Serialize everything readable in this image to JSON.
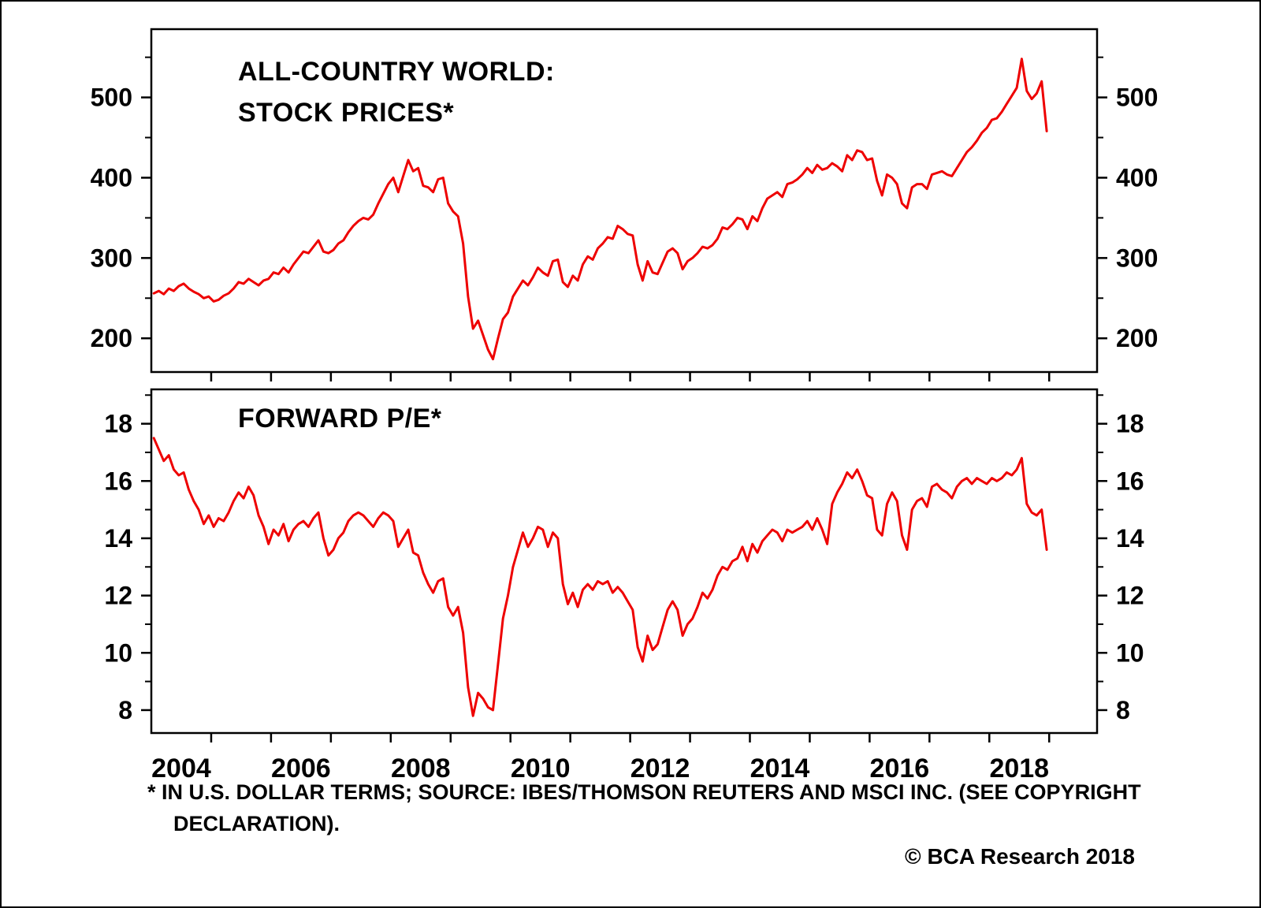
{
  "page": {
    "background": "#ffffff",
    "border_color": "#000000",
    "text_color": "#000000"
  },
  "footnote": {
    "line1": "* IN U.S. DOLLAR TERMS; SOURCE: IBES/THOMSON REUTERS AND MSCI INC. (SEE COPYRIGHT",
    "line2": "DECLARATION)."
  },
  "copyright": "© BCA Research 2018",
  "chart_data": [
    {
      "type": "line",
      "title": "ALL-COUNTRY WORLD: STOCK PRICES*",
      "title_line1": "ALL-COUNTRY WORLD:",
      "title_line2": "STOCK PRICES*",
      "grid": false,
      "legend": "none",
      "xlim": [
        2003.5,
        2019.3
      ],
      "ylim": [
        158,
        585
      ],
      "yticks_major": [
        200,
        300,
        400,
        500
      ],
      "ytick_labels": [
        "200",
        "300",
        "400",
        "500"
      ],
      "yticks_minor": [
        250,
        350,
        450,
        550
      ],
      "xticks": [
        2004.5,
        2005.5,
        2006.5,
        2007.5,
        2008.5,
        2009.5,
        2010.5,
        2011.5,
        2012.5,
        2013.5,
        2014.5,
        2015.5,
        2016.5,
        2017.5,
        2018.5
      ],
      "xtick_label_positions": [
        2004,
        2006,
        2008,
        2010,
        2012,
        2014,
        2016,
        2018
      ],
      "xtick_labels": [
        "2004",
        "2006",
        "2008",
        "2010",
        "2012",
        "2014",
        "2016",
        "2018"
      ],
      "show_xtick_labels": false,
      "series": [
        {
          "color": "#ee0000",
          "x_start": 2003.5417,
          "x_step_years": 0.0833333,
          "values": [
            256,
            259,
            255,
            262,
            259,
            265,
            268,
            262,
            258,
            255,
            250,
            252,
            246,
            248,
            253,
            256,
            262,
            270,
            268,
            274,
            270,
            266,
            272,
            274,
            282,
            280,
            288,
            282,
            292,
            300,
            308,
            306,
            314,
            322,
            308,
            306,
            310,
            318,
            322,
            332,
            340,
            346,
            350,
            348,
            354,
            368,
            380,
            392,
            400,
            382,
            402,
            422,
            408,
            412,
            390,
            388,
            382,
            398,
            400,
            368,
            358,
            352,
            318,
            252,
            212,
            222,
            204,
            186,
            174,
            200,
            224,
            232,
            252,
            262,
            272,
            266,
            276,
            288,
            282,
            278,
            296,
            298,
            270,
            264,
            278,
            272,
            292,
            302,
            298,
            312,
            318,
            326,
            324,
            340,
            336,
            330,
            328,
            292,
            272,
            296,
            282,
            280,
            294,
            308,
            312,
            306,
            286,
            296,
            300,
            306,
            314,
            312,
            316,
            324,
            338,
            336,
            342,
            350,
            348,
            336,
            352,
            346,
            362,
            374,
            378,
            382,
            376,
            392,
            394,
            398,
            404,
            412,
            406,
            416,
            410,
            412,
            418,
            414,
            408,
            428,
            422,
            434,
            432,
            422,
            424,
            396,
            378,
            404,
            400,
            392,
            368,
            362,
            388,
            392,
            392,
            386,
            404,
            406,
            408,
            404,
            402,
            412,
            422,
            432,
            438,
            446,
            456,
            462,
            472,
            474,
            482,
            492,
            502,
            512,
            548,
            508,
            498,
            505,
            520,
            458
          ]
        }
      ]
    },
    {
      "type": "line",
      "title": "FORWARD P/E*",
      "title_line1": "FORWARD P/E*",
      "title_line2": "",
      "grid": false,
      "legend": "none",
      "xlim": [
        2003.5,
        2019.3
      ],
      "ylim": [
        7.2,
        19.2
      ],
      "yticks_major": [
        8,
        10,
        12,
        14,
        16,
        18
      ],
      "ytick_labels": [
        "8",
        "10",
        "12",
        "14",
        "16",
        "18"
      ],
      "yticks_minor": [
        9,
        11,
        13,
        15,
        17,
        19
      ],
      "xticks": [
        2004.5,
        2005.5,
        2006.5,
        2007.5,
        2008.5,
        2009.5,
        2010.5,
        2011.5,
        2012.5,
        2013.5,
        2014.5,
        2015.5,
        2016.5,
        2017.5,
        2018.5
      ],
      "xtick_label_positions": [
        2004,
        2006,
        2008,
        2010,
        2012,
        2014,
        2016,
        2018
      ],
      "xtick_labels": [
        "2004",
        "2006",
        "2008",
        "2010",
        "2012",
        "2014",
        "2016",
        "2018"
      ],
      "show_xtick_labels": true,
      "series": [
        {
          "color": "#ee0000",
          "x_start": 2003.5417,
          "x_step_years": 0.0833333,
          "values": [
            17.5,
            17.1,
            16.7,
            16.9,
            16.4,
            16.2,
            16.3,
            15.7,
            15.3,
            15.0,
            14.5,
            14.8,
            14.4,
            14.7,
            14.6,
            14.9,
            15.3,
            15.6,
            15.4,
            15.8,
            15.5,
            14.8,
            14.4,
            13.8,
            14.3,
            14.1,
            14.5,
            13.9,
            14.3,
            14.5,
            14.6,
            14.4,
            14.7,
            14.9,
            14.0,
            13.4,
            13.6,
            14.0,
            14.2,
            14.6,
            14.8,
            14.9,
            14.8,
            14.6,
            14.4,
            14.7,
            14.9,
            14.8,
            14.6,
            13.7,
            14.0,
            14.3,
            13.5,
            13.4,
            12.8,
            12.4,
            12.1,
            12.5,
            12.6,
            11.6,
            11.3,
            11.6,
            10.7,
            8.8,
            7.8,
            8.6,
            8.4,
            8.1,
            8.0,
            9.6,
            11.2,
            12.0,
            13.0,
            13.6,
            14.2,
            13.7,
            14.0,
            14.4,
            14.3,
            13.7,
            14.2,
            14.0,
            12.4,
            11.7,
            12.1,
            11.6,
            12.2,
            12.4,
            12.2,
            12.5,
            12.4,
            12.5,
            12.1,
            12.3,
            12.1,
            11.8,
            11.5,
            10.2,
            9.7,
            10.6,
            10.1,
            10.3,
            10.9,
            11.5,
            11.8,
            11.5,
            10.6,
            11.0,
            11.2,
            11.6,
            12.1,
            11.9,
            12.2,
            12.7,
            13.0,
            12.9,
            13.2,
            13.3,
            13.7,
            13.2,
            13.8,
            13.5,
            13.9,
            14.1,
            14.3,
            14.2,
            13.9,
            14.3,
            14.2,
            14.3,
            14.4,
            14.6,
            14.3,
            14.7,
            14.3,
            13.8,
            15.2,
            15.6,
            15.9,
            16.3,
            16.1,
            16.4,
            16.0,
            15.5,
            15.4,
            14.3,
            14.1,
            15.2,
            15.6,
            15.3,
            14.1,
            13.6,
            15.0,
            15.3,
            15.4,
            15.1,
            15.8,
            15.9,
            15.7,
            15.6,
            15.4,
            15.8,
            16.0,
            16.1,
            15.9,
            16.1,
            16.0,
            15.9,
            16.1,
            16.0,
            16.1,
            16.3,
            16.2,
            16.4,
            16.8,
            15.2,
            14.9,
            14.8,
            15.0,
            13.6
          ]
        }
      ]
    }
  ]
}
